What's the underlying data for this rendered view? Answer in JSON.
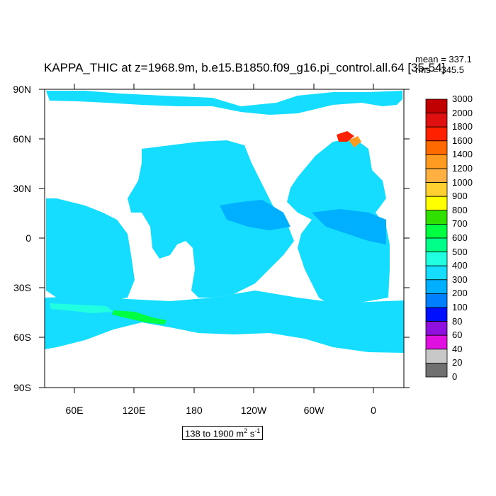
{
  "header": {
    "title": "KAPPA_THIC at z=1968.9m, b.e15.B1850.f09_g16.pi_control.all.64 [35-54]",
    "mean_label": "mean = 337.1",
    "rms_label": "rms = 345.5"
  },
  "axes": {
    "y_ticks": [
      "90N",
      "60N",
      "30N",
      "0",
      "30S",
      "60S",
      "90S"
    ],
    "x_ticks": [
      "60E",
      "120E",
      "180",
      "120W",
      "60W",
      "0"
    ]
  },
  "colorbar": {
    "labels": [
      "3000",
      "2000",
      "1800",
      "1600",
      "1400",
      "1200",
      "1000",
      "900",
      "800",
      "700",
      "600",
      "500",
      "400",
      "300",
      "200",
      "100",
      "80",
      "60",
      "40",
      "20",
      "0"
    ],
    "colors": [
      "#c00000",
      "#e01010",
      "#ff2000",
      "#ff6a00",
      "#ff9a20",
      "#ffb040",
      "#ffd030",
      "#ffff00",
      "#30e000",
      "#00ff40",
      "#00ff88",
      "#20ffe0",
      "#14ddff",
      "#00b0ff",
      "#0080ff",
      "#0010ff",
      "#9010e0",
      "#e010e0",
      "#c8c8c8",
      "#707070"
    ]
  },
  "range": {
    "prefix": "138 to 1900 m",
    "sup1": "2",
    "middle": " s",
    "sup2": "-1"
  },
  "map_colors": {
    "ocean": "#14ddff",
    "mid": "#00b0ff",
    "low": "#0080ff",
    "green": "#00ff40",
    "teal": "#20ffe0",
    "red": "#ff2000",
    "orange": "#ff9a20"
  }
}
